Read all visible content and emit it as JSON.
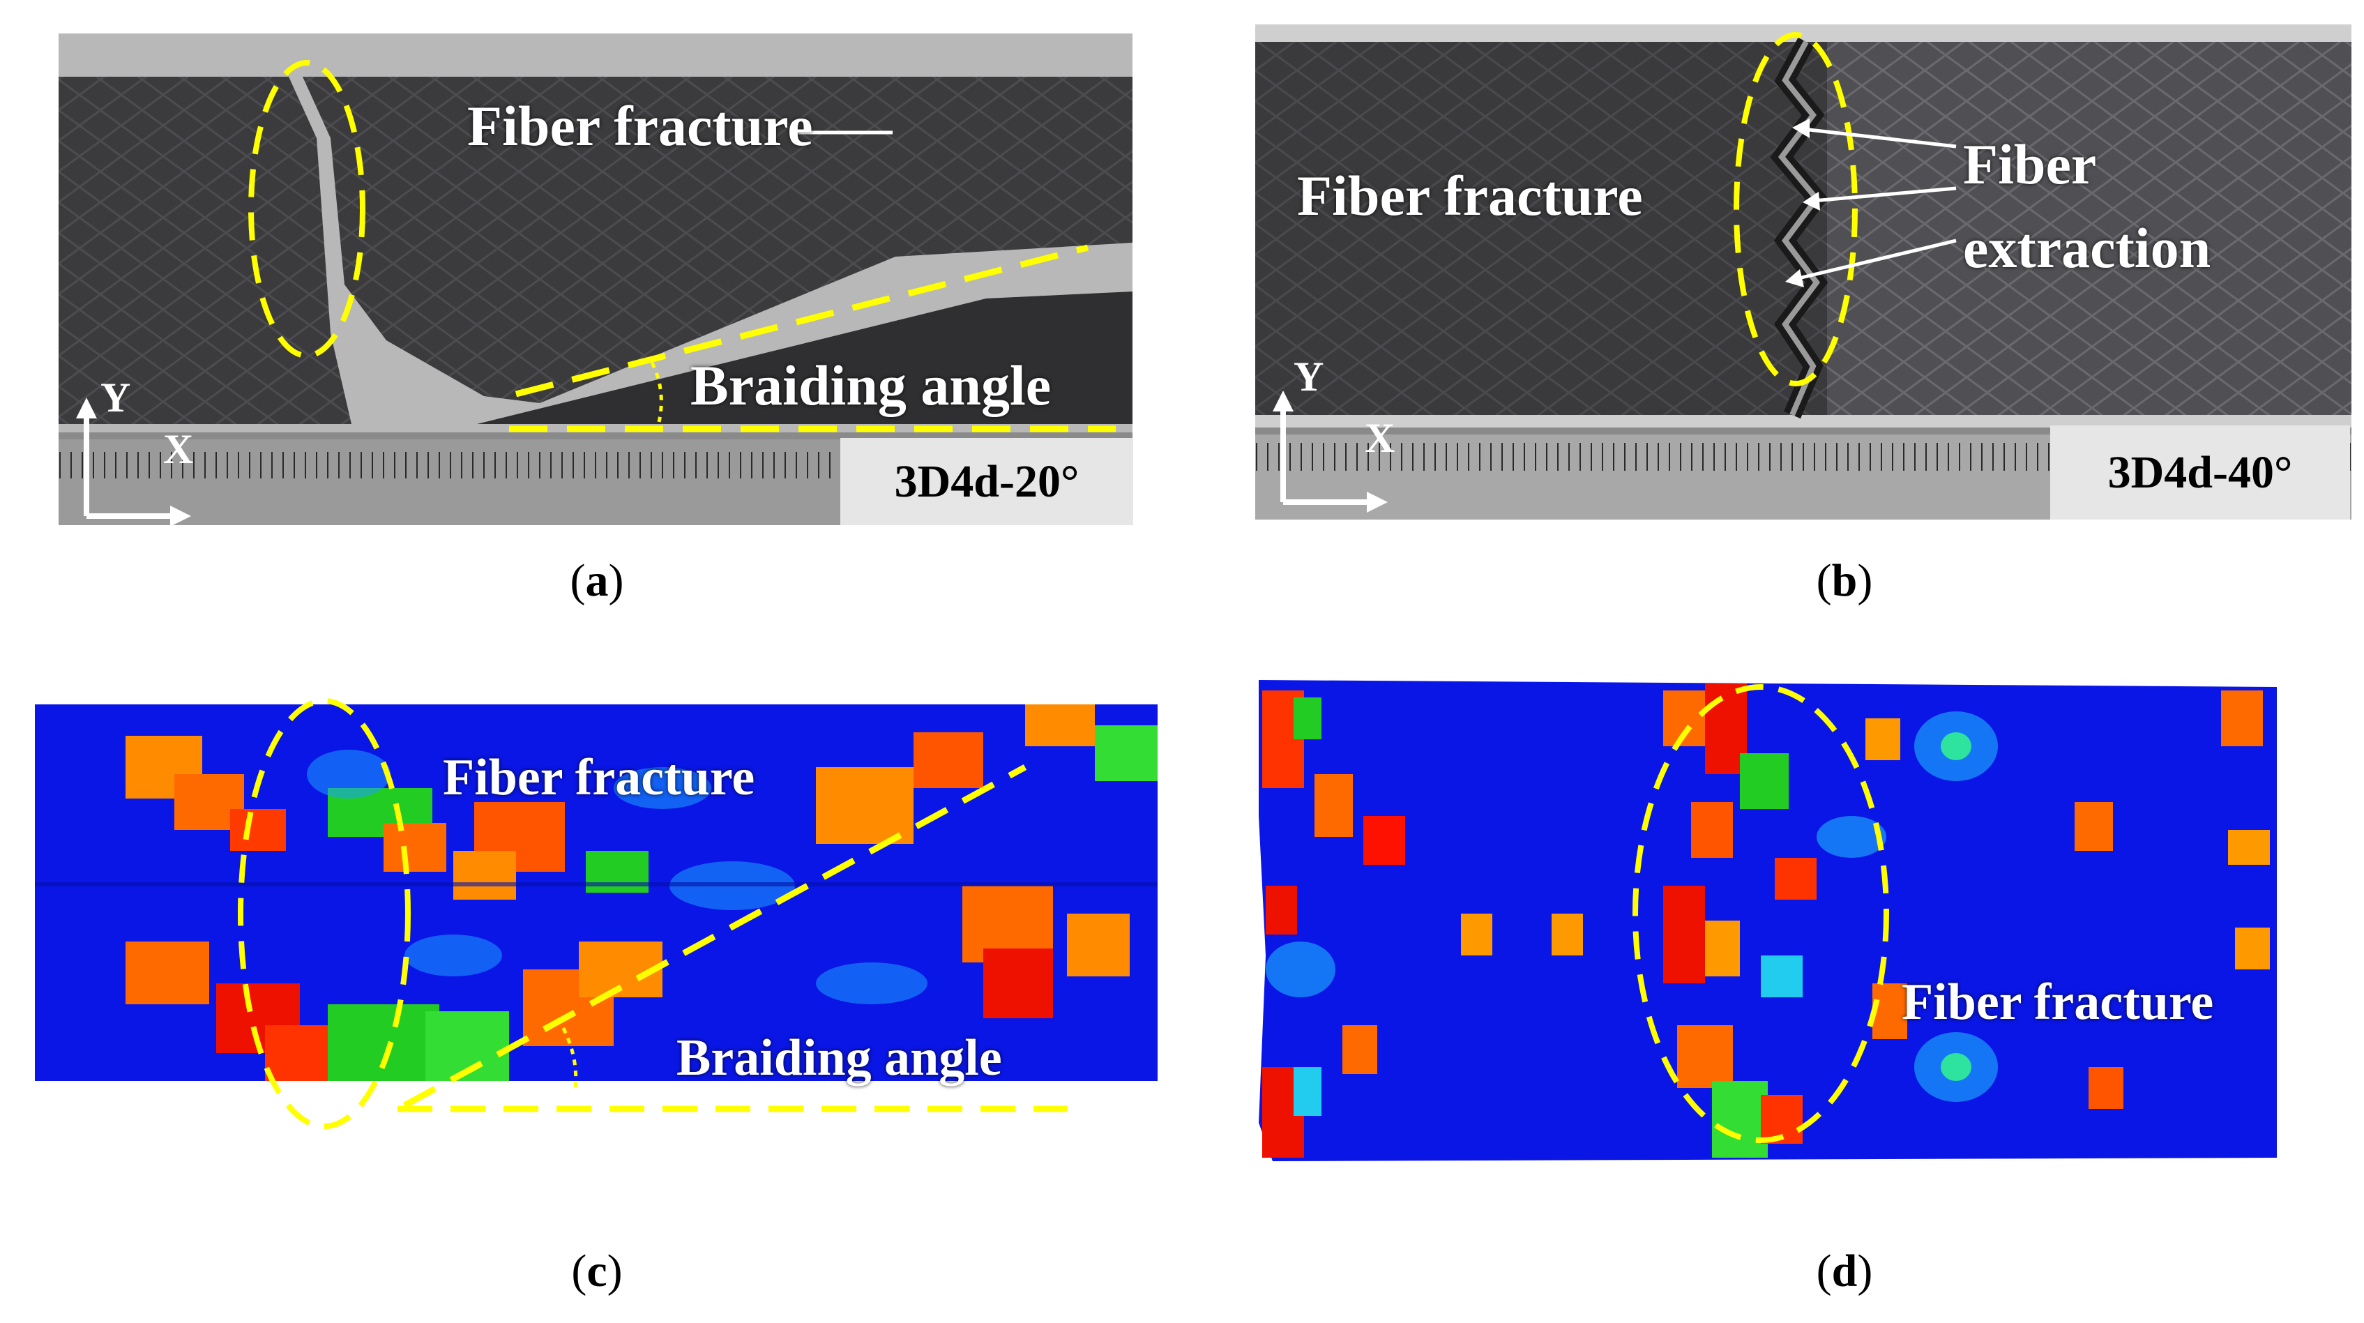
{
  "panels": {
    "a": {
      "caption_letter": "a",
      "label_fracture": "Fiber fracture",
      "label_braiding": "Braiding angle",
      "sample_tag": "3D4d-20°",
      "axis_y": "Y",
      "axis_x": "X"
    },
    "b": {
      "caption_letter": "b",
      "label_fracture": "Fiber fracture",
      "label_extraction_1": "Fiber",
      "label_extraction_2": "extraction",
      "sample_tag": "3D4d-40°",
      "axis_y": "Y",
      "axis_x": "X"
    },
    "c": {
      "caption_letter": "c",
      "label_fracture": "Fiber fracture",
      "label_braiding": "Braiding angle"
    },
    "d": {
      "caption_letter": "d",
      "label_fracture": "Fiber fracture"
    }
  },
  "colors": {
    "highlight": "#ffff00",
    "specimen": "#3a3a3c",
    "sim_background": "#0a16e6",
    "tag_background": "#e6e6e6"
  }
}
